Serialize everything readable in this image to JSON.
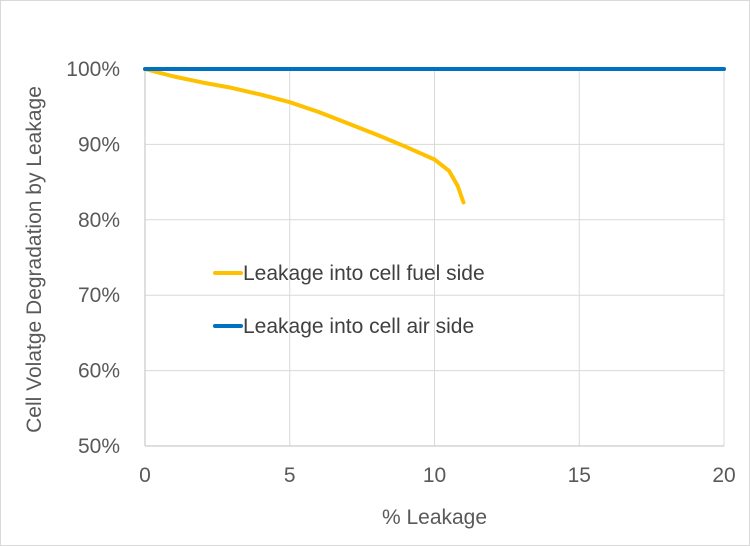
{
  "chart_data": {
    "type": "line",
    "title": "",
    "xlabel": "% Leakage",
    "ylabel": "Cell Volatge Degradation by Leakage",
    "xlim": [
      0,
      20
    ],
    "ylim": [
      0.5,
      1.0
    ],
    "x_ticks": [
      0,
      5,
      10,
      15,
      20
    ],
    "x_tick_labels": [
      "0",
      "5",
      "10",
      "15",
      "20"
    ],
    "y_ticks": [
      0.5,
      0.6,
      0.7,
      0.8,
      0.9,
      1.0
    ],
    "y_tick_labels": [
      "50%",
      "60%",
      "70%",
      "80%",
      "90%",
      "100%"
    ],
    "grid": "vertical and horizontal major gridlines",
    "legend_position": "center-left inside plot",
    "series": [
      {
        "name": "Leakage into cell fuel side",
        "color": "#FFC000",
        "x": [
          0,
          1,
          2,
          3,
          4,
          5,
          6,
          7,
          8,
          9,
          10,
          10.5,
          10.8,
          11
        ],
        "y": [
          1.0,
          0.99,
          0.982,
          0.975,
          0.966,
          0.956,
          0.943,
          0.928,
          0.913,
          0.897,
          0.88,
          0.865,
          0.845,
          0.823
        ]
      },
      {
        "name": "Leakage into cell air side",
        "color": "#0070C0",
        "x": [
          0,
          20
        ],
        "y": [
          1.0,
          1.0
        ]
      }
    ]
  }
}
